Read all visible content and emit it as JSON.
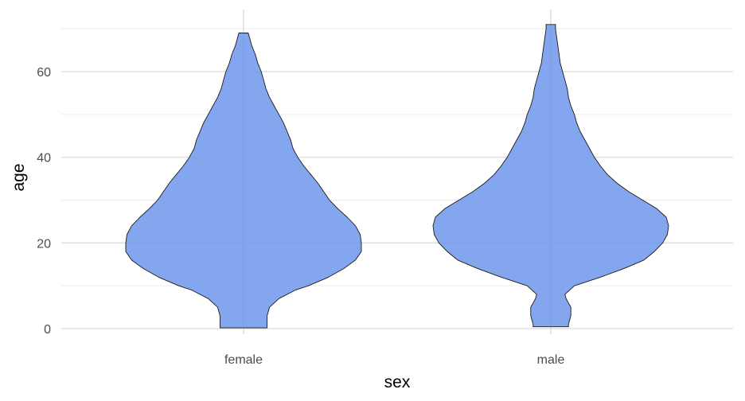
{
  "chart_data": {
    "type": "violin",
    "xlabel": "sex",
    "ylabel": "age",
    "categories": [
      "female",
      "male"
    ],
    "ylim": [
      0,
      72
    ],
    "yticks": [
      0,
      20,
      40,
      60
    ],
    "y_minor_ticks": [
      10,
      30,
      50,
      70
    ],
    "grid": true,
    "fill_color": "#6e97ec",
    "fill_opacity": 0.85,
    "outline_color": "#1a1a1a",
    "violins": [
      {
        "category": "female",
        "age_range": [
          0.17,
          69
        ],
        "density_profile": {
          "age": [
            0.17,
            1,
            3,
            5,
            7,
            9,
            10,
            12,
            14,
            16,
            18,
            20,
            22,
            24,
            26,
            28,
            30,
            32,
            34,
            36,
            38,
            40,
            42,
            44,
            46,
            48,
            50,
            52,
            54,
            56,
            58,
            60,
            62,
            64,
            66,
            68,
            69
          ],
          "relative_width": [
            0.2,
            0.2,
            0.2,
            0.22,
            0.3,
            0.44,
            0.55,
            0.72,
            0.85,
            0.95,
            1.0,
            1.0,
            0.99,
            0.95,
            0.88,
            0.8,
            0.73,
            0.68,
            0.63,
            0.57,
            0.51,
            0.46,
            0.42,
            0.4,
            0.37,
            0.34,
            0.3,
            0.26,
            0.22,
            0.19,
            0.17,
            0.15,
            0.12,
            0.1,
            0.07,
            0.05,
            0.04
          ]
        }
      },
      {
        "category": "male",
        "age_range": [
          0.42,
          71
        ],
        "density_profile": {
          "age": [
            0.42,
            1,
            3,
            5,
            6,
            7,
            8,
            10,
            12,
            14,
            16,
            18,
            20,
            22,
            24,
            26,
            28,
            30,
            32,
            34,
            36,
            38,
            40,
            42,
            44,
            46,
            48,
            50,
            52,
            54,
            56,
            58,
            60,
            62,
            64,
            66,
            68,
            70,
            71
          ],
          "relative_width": [
            0.15,
            0.15,
            0.17,
            0.17,
            0.15,
            0.13,
            0.12,
            0.2,
            0.42,
            0.62,
            0.79,
            0.88,
            0.95,
            0.99,
            1.0,
            0.98,
            0.9,
            0.78,
            0.66,
            0.56,
            0.48,
            0.42,
            0.37,
            0.33,
            0.29,
            0.25,
            0.22,
            0.2,
            0.17,
            0.15,
            0.14,
            0.12,
            0.1,
            0.08,
            0.07,
            0.06,
            0.05,
            0.04,
            0.04
          ]
        }
      }
    ]
  }
}
